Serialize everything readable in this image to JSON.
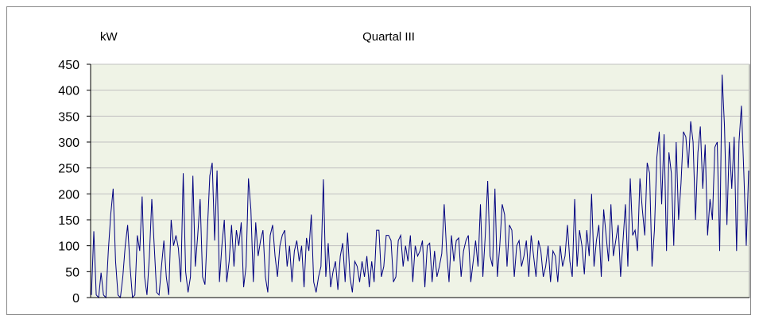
{
  "chart_data": {
    "type": "line",
    "title": "Quartal III",
    "ylabel": "kW",
    "xlabel": "",
    "ylim": [
      0,
      450
    ],
    "yticks": [
      0,
      50,
      100,
      150,
      200,
      250,
      300,
      350,
      400,
      450
    ],
    "ytick_labels": [
      "0",
      "50",
      "100",
      "150",
      "200",
      "250",
      "300",
      "350",
      "400",
      "450"
    ],
    "grid": true,
    "legend": "none",
    "colors": {
      "line": "#000080",
      "plot_bg": "#eff3e6",
      "grid": "#c0c0c0"
    },
    "series": [
      {
        "values": [
          5,
          128,
          5,
          0,
          48,
          5,
          0,
          90,
          160,
          210,
          70,
          5,
          0,
          40,
          100,
          140,
          60,
          0,
          5,
          120,
          90,
          195,
          40,
          5,
          80,
          190,
          100,
          10,
          5,
          60,
          110,
          40,
          5,
          150,
          100,
          120,
          95,
          30,
          240,
          50,
          10,
          40,
          235,
          60,
          120,
          190,
          40,
          25,
          130,
          235,
          260,
          110,
          245,
          30,
          100,
          150,
          30,
          70,
          140,
          60,
          130,
          100,
          145,
          20,
          60,
          230,
          170,
          30,
          145,
          80,
          110,
          130,
          40,
          10,
          120,
          140,
          80,
          40,
          100,
          120,
          130,
          60,
          100,
          30,
          90,
          110,
          70,
          100,
          20,
          115,
          90,
          160,
          30,
          10,
          40,
          60,
          228,
          40,
          105,
          20,
          50,
          70,
          15,
          80,
          105,
          30,
          125,
          40,
          10,
          70,
          60,
          30,
          70,
          40,
          80,
          20,
          70,
          30,
          130,
          130,
          40,
          60,
          120,
          120,
          110,
          30,
          40,
          110,
          120,
          60,
          100,
          70,
          120,
          30,
          100,
          80,
          90,
          110,
          20,
          100,
          105,
          30,
          90,
          40,
          60,
          85,
          180,
          90,
          30,
          120,
          70,
          110,
          115,
          40,
          90,
          110,
          120,
          30,
          70,
          110,
          60,
          180,
          40,
          120,
          225,
          80,
          60,
          210,
          40,
          100,
          180,
          160,
          60,
          140,
          130,
          40,
          100,
          110,
          60,
          80,
          110,
          40,
          120,
          80,
          40,
          110,
          90,
          40,
          60,
          100,
          30,
          90,
          80,
          30,
          100,
          60,
          80,
          140,
          70,
          40,
          190,
          60,
          130,
          100,
          45,
          130,
          80,
          200,
          60,
          110,
          140,
          40,
          170,
          120,
          70,
          180,
          80,
          110,
          140,
          40,
          110,
          180,
          60,
          230,
          120,
          130,
          90,
          230,
          170,
          120,
          260,
          240,
          60,
          130,
          270,
          320,
          180,
          315,
          90,
          280,
          240,
          100,
          300,
          150,
          220,
          320,
          310,
          250,
          340,
          300,
          150,
          280,
          330,
          210,
          295,
          120,
          190,
          150,
          290,
          300,
          90,
          430,
          330,
          140,
          300,
          210,
          310,
          90,
          300,
          370,
          240,
          100,
          245
        ]
      }
    ]
  }
}
